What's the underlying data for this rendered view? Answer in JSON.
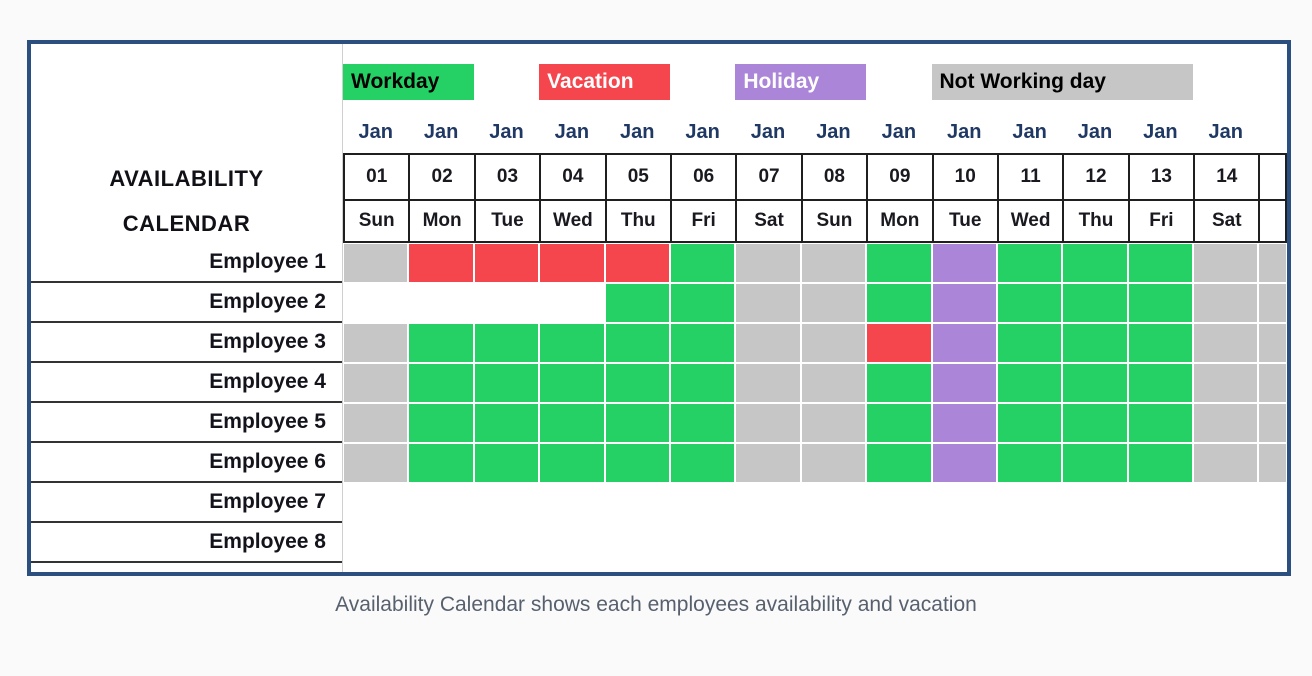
{
  "title": {
    "line1": "AVAILABILITY",
    "line2": "CALENDAR"
  },
  "legend": [
    {
      "label": "Workday",
      "color": "#25D064",
      "text_color": "#000000"
    },
    {
      "label": "Vacation",
      "color": "#F4464C",
      "text_color": "#ffffff"
    },
    {
      "label": "Holiday",
      "color": "#AB85D8",
      "text_color": "#ffffff"
    },
    {
      "label": "Not Working day",
      "color": "#C6C6C6",
      "text_color": "#000000"
    }
  ],
  "calendar": {
    "month_labels": [
      "Jan",
      "Jan",
      "Jan",
      "Jan",
      "Jan",
      "Jan",
      "Jan",
      "Jan",
      "Jan",
      "Jan",
      "Jan",
      "Jan",
      "Jan",
      "Jan"
    ],
    "dates": [
      "01",
      "02",
      "03",
      "04",
      "05",
      "06",
      "07",
      "08",
      "09",
      "10",
      "11",
      "12",
      "13",
      "14"
    ],
    "weekdays": [
      "Sun",
      "Mon",
      "Tue",
      "Wed",
      "Thu",
      "Fri",
      "Sat",
      "Sun",
      "Mon",
      "Tue",
      "Wed",
      "Thu",
      "Fri",
      "Sat"
    ]
  },
  "status_codes": {
    "W": "Workday",
    "V": "Vacation",
    "H": "Holiday",
    "N": "Not Working day"
  },
  "status_colors": {
    "W": "#25D064",
    "V": "#F4464C",
    "H": "#AB85D8",
    "N": "#C6C6C6"
  },
  "employees": [
    {
      "name": "Employee 1",
      "days": [
        "N",
        "V",
        "V",
        "V",
        "V",
        "W",
        "N",
        "N",
        "W",
        "H",
        "W",
        "W",
        "W",
        "N"
      ]
    },
    {
      "name": "Employee 2",
      "days": [
        "",
        "",
        "",
        "",
        "W",
        "W",
        "N",
        "N",
        "W",
        "H",
        "W",
        "W",
        "W",
        "N"
      ]
    },
    {
      "name": "Employee 3",
      "days": [
        "N",
        "W",
        "W",
        "W",
        "W",
        "W",
        "N",
        "N",
        "V",
        "H",
        "W",
        "W",
        "W",
        "N"
      ]
    },
    {
      "name": "Employee 4",
      "days": [
        "N",
        "W",
        "W",
        "W",
        "W",
        "W",
        "N",
        "N",
        "W",
        "H",
        "W",
        "W",
        "W",
        "N"
      ]
    },
    {
      "name": "Employee 5",
      "days": [
        "N",
        "W",
        "W",
        "W",
        "W",
        "W",
        "N",
        "N",
        "W",
        "H",
        "W",
        "W",
        "W",
        "N"
      ]
    },
    {
      "name": "Employee 6",
      "days": [
        "N",
        "W",
        "W",
        "W",
        "W",
        "W",
        "N",
        "N",
        "W",
        "H",
        "W",
        "W",
        "W",
        "N"
      ]
    },
    {
      "name": "Employee 7",
      "days": [
        "",
        "",
        "",
        "",
        "",
        "",
        "",
        "",
        "",
        "",
        "",
        "",
        "",
        ""
      ]
    },
    {
      "name": "Employee 8",
      "days": [
        "",
        "",
        "",
        "",
        "",
        "",
        "",
        "",
        "",
        "",
        "",
        "",
        "",
        ""
      ]
    }
  ],
  "edge_column": [
    "N",
    "N",
    "N",
    "N",
    "N",
    "N",
    "",
    ""
  ],
  "caption": "Availability Calendar shows each employees availability and vacation"
}
